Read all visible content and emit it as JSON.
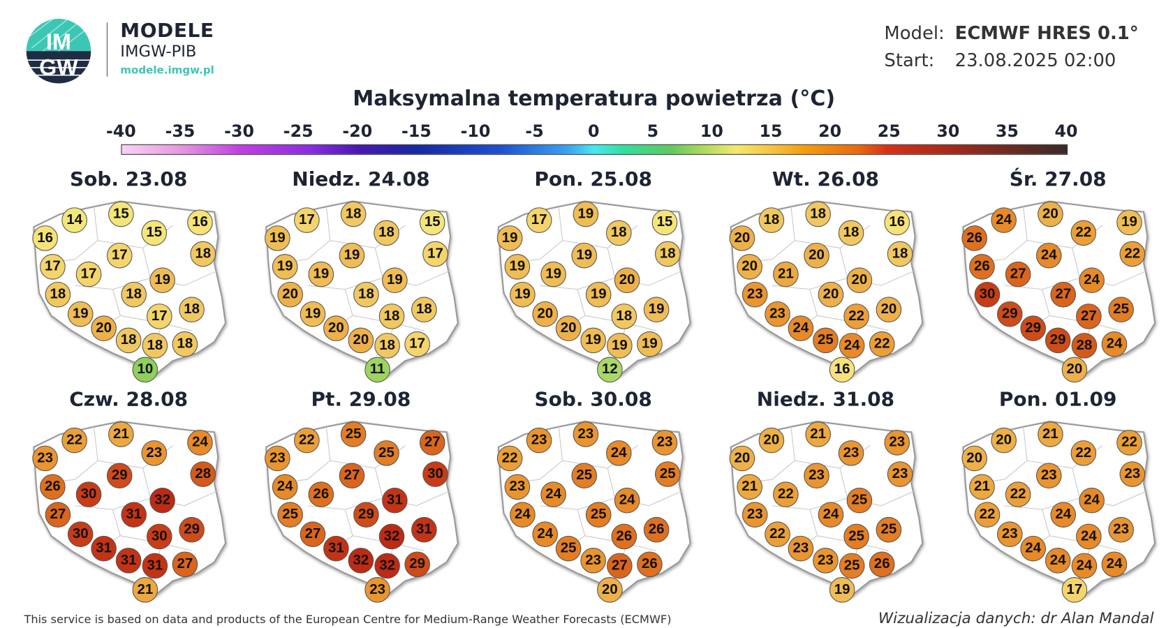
{
  "brand": {
    "name": "MODELE",
    "org": "IMGW-PIB",
    "url": "modele.imgw.pl",
    "logo_text": "IMGW"
  },
  "meta": {
    "model_label": "Model:",
    "model_value": "ECMWF HRES 0.1°",
    "start_label": "Start:",
    "start_value": "23.08.2025 02:00"
  },
  "title": "Maksymalna temperatura powietrza (°C)",
  "colorbar": {
    "ticks": [
      "-40",
      "-35",
      "-30",
      "-25",
      "-20",
      "-15",
      "-10",
      "-5",
      "0",
      "5",
      "10",
      "15",
      "20",
      "25",
      "30",
      "35",
      "40"
    ],
    "min": -40,
    "max": 40
  },
  "maps": [
    {
      "label": "Sob. 23.08",
      "values": [
        16,
        14,
        15,
        15,
        16,
        17,
        18,
        17,
        17,
        19,
        18,
        18,
        19,
        17,
        18,
        20,
        18,
        18,
        18,
        10
      ]
    },
    {
      "label": "Niedz. 24.08",
      "values": [
        19,
        17,
        18,
        18,
        15,
        19,
        17,
        19,
        19,
        19,
        20,
        18,
        19,
        18,
        18,
        20,
        20,
        18,
        17,
        11
      ]
    },
    {
      "label": "Pon. 25.08",
      "values": [
        19,
        17,
        19,
        18,
        15,
        19,
        18,
        19,
        19,
        20,
        19,
        19,
        20,
        18,
        19,
        20,
        19,
        19,
        19,
        12
      ]
    },
    {
      "label": "Wt. 26.08",
      "values": [
        20,
        18,
        18,
        18,
        16,
        20,
        18,
        20,
        21,
        20,
        23,
        20,
        23,
        22,
        20,
        24,
        25,
        24,
        22,
        16
      ]
    },
    {
      "label": "Śr. 27.08",
      "values": [
        26,
        24,
        20,
        22,
        19,
        24,
        22,
        26,
        27,
        24,
        30,
        27,
        29,
        27,
        25,
        29,
        29,
        28,
        24,
        20
      ]
    },
    {
      "label": "Czw. 28.08",
      "values": [
        23,
        22,
        21,
        23,
        24,
        29,
        28,
        26,
        30,
        32,
        27,
        31,
        30,
        30,
        29,
        31,
        31,
        31,
        27,
        21
      ]
    },
    {
      "label": "Pt. 29.08",
      "values": [
        23,
        22,
        25,
        25,
        27,
        27,
        30,
        24,
        26,
        31,
        25,
        29,
        27,
        32,
        31,
        31,
        32,
        32,
        29,
        23
      ]
    },
    {
      "label": "Sob. 30.08",
      "values": [
        22,
        23,
        23,
        24,
        23,
        25,
        25,
        23,
        24,
        24,
        24,
        25,
        24,
        26,
        26,
        25,
        23,
        27,
        26,
        20
      ]
    },
    {
      "label": "Niedz. 31.08",
      "values": [
        20,
        20,
        21,
        23,
        23,
        23,
        23,
        21,
        22,
        25,
        23,
        24,
        22,
        25,
        25,
        23,
        23,
        25,
        26,
        19
      ]
    },
    {
      "label": "Pon. 01.09",
      "values": [
        20,
        20,
        21,
        22,
        22,
        23,
        23,
        21,
        22,
        24,
        22,
        24,
        23,
        24,
        23,
        24,
        24,
        24,
        24,
        17
      ]
    }
  ],
  "footer": {
    "credit": "This service is based on data and products of the European Centre for Medium-Range Weather Forecasts (ECMWF)",
    "author": "Wizualizacja danych: dr Alan Mandal"
  }
}
